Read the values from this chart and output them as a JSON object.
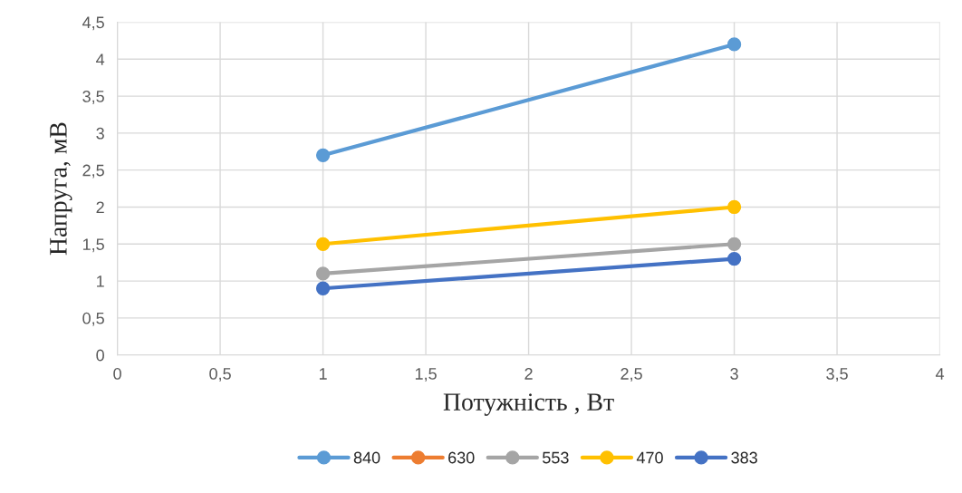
{
  "chart_data": {
    "type": "line",
    "xlabel": "Потужність , Вт",
    "ylabel": "Напруга, мВ",
    "x": [
      1,
      3
    ],
    "series": [
      {
        "name": "840",
        "color": "#5b9bd5",
        "values": [
          2.7,
          4.2
        ]
      },
      {
        "name": "630",
        "color": "#ed7d31",
        "values": [
          null,
          null
        ]
      },
      {
        "name": "553",
        "color": "#a5a5a5",
        "values": [
          1.1,
          1.5
        ]
      },
      {
        "name": "470",
        "color": "#ffc000",
        "values": [
          1.5,
          2
        ]
      },
      {
        "name": "383",
        "color": "#4472c4",
        "values": [
          0.9,
          1.3
        ]
      }
    ],
    "xlim": [
      0,
      4
    ],
    "xticks": [
      0,
      {
        "value": 0.5,
        "label": "0,5"
      },
      1,
      {
        "value": 1.5,
        "label": "1,5"
      },
      2,
      {
        "value": 2.5,
        "label": "2,5"
      },
      3,
      {
        "value": 3.5,
        "label": "3,5"
      },
      4
    ],
    "ylim": [
      0,
      4.5
    ],
    "yticks": [
      0,
      {
        "value": 0.5,
        "label": "0,5"
      },
      1,
      {
        "value": 1.5,
        "label": "1,5"
      },
      2,
      {
        "value": 2.5,
        "label": "2,5"
      },
      3,
      {
        "value": 3.5,
        "label": "3,5"
      },
      4,
      {
        "value": 4.5,
        "label": "4,5"
      }
    ],
    "grid": true,
    "legend": "bottom",
    "marker": "circle",
    "line_style": "solid"
  }
}
